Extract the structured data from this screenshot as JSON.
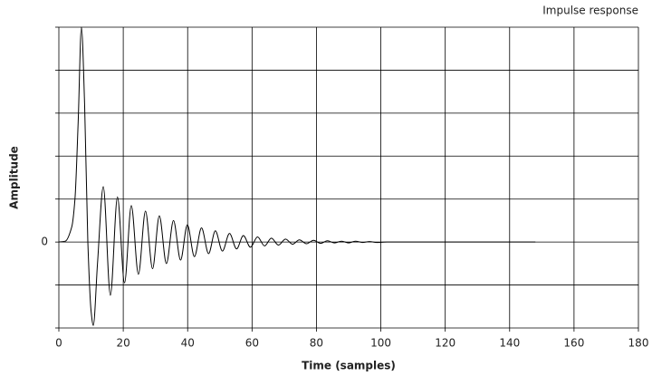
{
  "chart_data": {
    "type": "line",
    "title": "Impulse response",
    "xlabel": "Time (samples)",
    "ylabel": "Amplitude",
    "xlim": [
      0,
      180
    ],
    "xticks": [
      0,
      20,
      40,
      60,
      80,
      100,
      120,
      140,
      160,
      180
    ],
    "ylim": [
      -2,
      5
    ],
    "yticks": [
      0
    ],
    "ygrid": [
      -2,
      -1,
      0,
      1,
      2,
      3,
      4,
      5
    ],
    "grid": true,
    "series": [
      {
        "name": "Impulse response",
        "color": "#000000",
        "x": [
          0,
          2,
          4,
          5,
          6,
          7,
          8,
          9,
          10,
          10.7,
          12,
          13.8,
          16.0,
          18.2,
          20.4,
          22.5,
          24.7,
          26.9,
          29.1,
          31.2,
          33.4,
          35.6,
          37.8,
          39.9,
          42.1,
          44.3,
          46.5,
          48.6,
          50.8,
          53.0,
          55.2,
          57.3,
          59.5,
          61.7,
          63.9,
          66.0,
          68.2,
          70.4,
          72.6,
          74.7,
          76.9,
          79.1,
          81.3,
          83.4,
          85.6,
          87.8,
          90.0,
          92.1,
          94.3,
          96.5,
          98.7,
          102,
          148
        ],
        "values": [
          0,
          0.02,
          0.35,
          1.0,
          2.8,
          5.0,
          3.2,
          0,
          -1.6,
          -1.94,
          -0.5,
          1.29,
          -1.24,
          1.05,
          -0.95,
          0.85,
          -0.75,
          0.72,
          -0.62,
          0.61,
          -0.5,
          0.5,
          -0.42,
          0.4,
          -0.34,
          0.33,
          -0.27,
          0.26,
          -0.21,
          0.2,
          -0.16,
          0.15,
          -0.12,
          0.12,
          -0.09,
          0.09,
          -0.07,
          0.07,
          -0.05,
          0.05,
          -0.04,
          0.04,
          -0.03,
          0.03,
          -0.02,
          0.02,
          -0.02,
          0.02,
          -0.01,
          0.01,
          -0.01,
          0,
          0
        ]
      }
    ]
  }
}
